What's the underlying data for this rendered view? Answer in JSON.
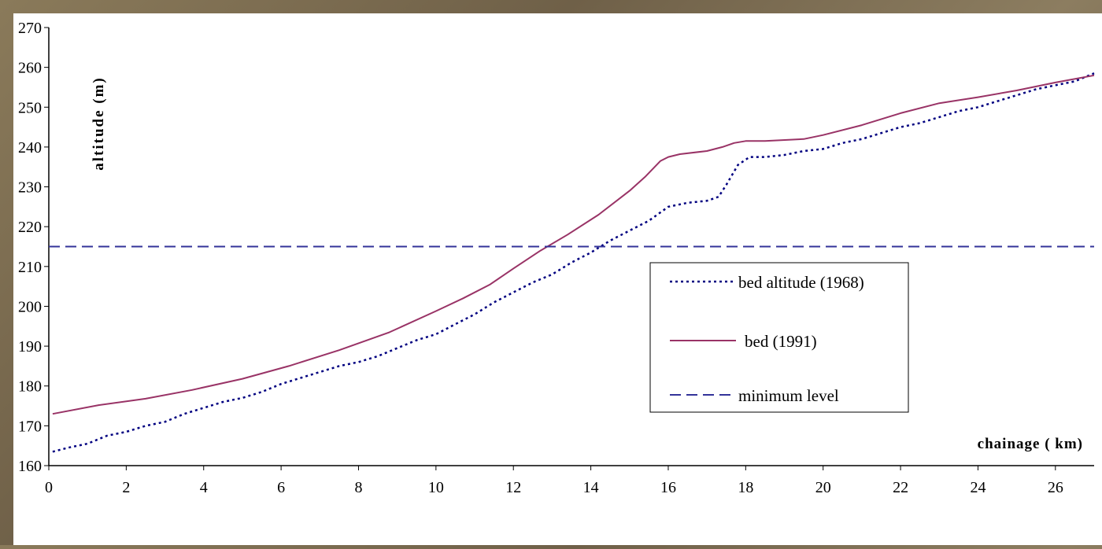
{
  "colors": {
    "background_texture": "#7d6e52",
    "panel": "#ffffff",
    "axis": "#000000",
    "series_1968": "#000080",
    "series_1991": "#993366",
    "minimum_level": "#333399"
  },
  "chart_data": {
    "type": "line",
    "title": "",
    "xlabel": "chainage ( km)",
    "ylabel": "altitude (m)",
    "xlim": [
      0,
      27
    ],
    "ylim": [
      160,
      270
    ],
    "xticks": [
      0,
      2,
      4,
      6,
      8,
      10,
      12,
      14,
      16,
      18,
      20,
      22,
      24,
      26
    ],
    "yticks": [
      160,
      170,
      180,
      190,
      200,
      210,
      220,
      230,
      240,
      250,
      260,
      270
    ],
    "grid": false,
    "legend_position": "center-right",
    "series": [
      {
        "name": "bed altitude (1968)",
        "style": "dotted",
        "color": "#000080",
        "points": [
          [
            0.1,
            163.5
          ],
          [
            0.5,
            164.5
          ],
          [
            1.0,
            165.5
          ],
          [
            1.5,
            167.5
          ],
          [
            2.0,
            168.5
          ],
          [
            2.5,
            170.0
          ],
          [
            3.0,
            171.0
          ],
          [
            3.5,
            173.0
          ],
          [
            4.0,
            174.5
          ],
          [
            4.5,
            176.0
          ],
          [
            5.0,
            177.0
          ],
          [
            5.5,
            178.5
          ],
          [
            6.0,
            180.5
          ],
          [
            6.5,
            182.0
          ],
          [
            7.0,
            183.5
          ],
          [
            7.5,
            185.0
          ],
          [
            8.0,
            186.0
          ],
          [
            8.5,
            187.5
          ],
          [
            9.0,
            189.5
          ],
          [
            9.5,
            191.5
          ],
          [
            10.0,
            193.0
          ],
          [
            10.5,
            195.5
          ],
          [
            11.0,
            198.0
          ],
          [
            11.5,
            201.0
          ],
          [
            12.0,
            203.5
          ],
          [
            12.5,
            206.0
          ],
          [
            13.0,
            208.0
          ],
          [
            13.5,
            211.0
          ],
          [
            14.0,
            213.5
          ],
          [
            14.5,
            216.5
          ],
          [
            15.0,
            219.0
          ],
          [
            15.5,
            221.5
          ],
          [
            16.0,
            225.0
          ],
          [
            16.5,
            226.0
          ],
          [
            17.0,
            226.5
          ],
          [
            17.3,
            227.5
          ],
          [
            17.5,
            230.5
          ],
          [
            17.8,
            235.5
          ],
          [
            18.1,
            237.5
          ],
          [
            18.5,
            237.5
          ],
          [
            19.0,
            238.0
          ],
          [
            19.5,
            239.0
          ],
          [
            20.0,
            239.5
          ],
          [
            20.5,
            241.0
          ],
          [
            21.0,
            242.0
          ],
          [
            21.5,
            243.5
          ],
          [
            22.0,
            245.0
          ],
          [
            22.5,
            246.0
          ],
          [
            23.0,
            247.5
          ],
          [
            23.5,
            249.0
          ],
          [
            24.0,
            250.0
          ],
          [
            24.5,
            251.5
          ],
          [
            25.0,
            253.0
          ],
          [
            25.5,
            254.5
          ],
          [
            26.0,
            255.5
          ],
          [
            26.5,
            256.5
          ],
          [
            27.0,
            258.5
          ]
        ]
      },
      {
        "name": "bed (1991)",
        "style": "solid",
        "color": "#993366",
        "points": [
          [
            0.1,
            173.0
          ],
          [
            1.3,
            175.2
          ],
          [
            2.5,
            176.8
          ],
          [
            3.7,
            179.0
          ],
          [
            5.0,
            181.8
          ],
          [
            6.2,
            185.0
          ],
          [
            7.5,
            189.0
          ],
          [
            8.8,
            193.5
          ],
          [
            10.0,
            198.8
          ],
          [
            10.7,
            202.0
          ],
          [
            11.4,
            205.5
          ],
          [
            12.0,
            209.5
          ],
          [
            12.7,
            214.0
          ],
          [
            13.4,
            218.0
          ],
          [
            14.2,
            223.0
          ],
          [
            15.0,
            229.0
          ],
          [
            15.4,
            232.5
          ],
          [
            15.8,
            236.5
          ],
          [
            16.0,
            237.5
          ],
          [
            16.3,
            238.2
          ],
          [
            17.0,
            239.0
          ],
          [
            17.4,
            240.0
          ],
          [
            17.7,
            241.0
          ],
          [
            18.0,
            241.5
          ],
          [
            18.5,
            241.5
          ],
          [
            19.5,
            242.0
          ],
          [
            20.0,
            243.0
          ],
          [
            21.0,
            245.5
          ],
          [
            22.0,
            248.5
          ],
          [
            23.0,
            251.0
          ],
          [
            24.0,
            252.5
          ],
          [
            25.0,
            254.2
          ],
          [
            26.0,
            256.2
          ],
          [
            27.0,
            258.0
          ]
        ]
      },
      {
        "name": "minimum level",
        "style": "dashed",
        "color": "#333399",
        "points": [
          [
            0,
            215.0
          ],
          [
            27,
            215.0
          ]
        ]
      }
    ]
  }
}
